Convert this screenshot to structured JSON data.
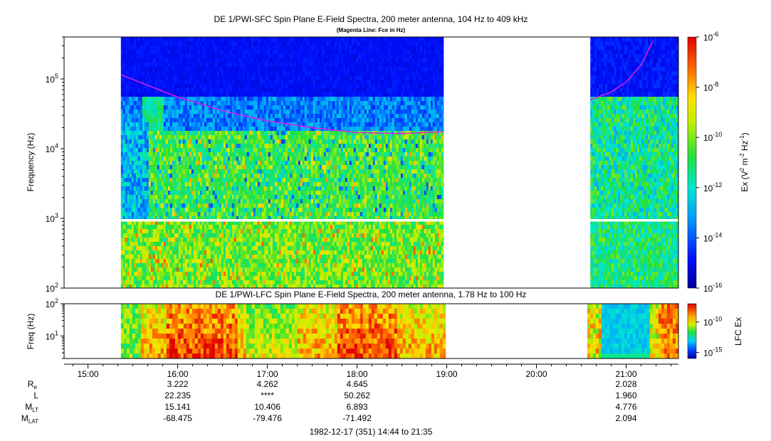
{
  "chart_data": [
    {
      "type": "heatmap",
      "title": "DE 1/PWI-SFC  Spin Plane E-Field Spectra, 200 meter antenna, 104 Hz to 409 kHz",
      "subtitle": "(Magenta Line: Fce in Hz)",
      "ylabel": "Frequency (Hz)",
      "yscale": "log",
      "ylim": [
        100,
        400000
      ],
      "yticks": [
        {
          "base": "10",
          "exp": "2"
        },
        {
          "base": "10",
          "exp": "3"
        },
        {
          "base": "10",
          "exp": "4"
        },
        {
          "base": "10",
          "exp": "5"
        }
      ],
      "colorbar": {
        "label": "Ex (V",
        "label_sup1": "2",
        "label_mid": " m",
        "label_sup2": "-2",
        "label_mid2": " Hz",
        "label_sup3": "-1",
        "label_end": ")",
        "ticks": [
          {
            "base": "10",
            "exp": "-6"
          },
          {
            "base": "10",
            "exp": "-8"
          },
          {
            "base": "10",
            "exp": "-10"
          },
          {
            "base": "10",
            "exp": "-12"
          },
          {
            "base": "10",
            "exp": "-14"
          },
          {
            "base": "10",
            "exp": "-16"
          }
        ],
        "range_log10": [
          -16,
          -6
        ]
      },
      "data_intervals": [
        {
          "start": "15:22",
          "end": "18:58"
        },
        {
          "start": "20:36",
          "end": "21:35"
        }
      ],
      "fce_line": {
        "color": "#e020e0",
        "segment1": {
          "x": [
            "15:22",
            "16:00",
            "16:30",
            "17:00",
            "17:30",
            "18:00",
            "18:30",
            "18:58"
          ],
          "y": [
            115000,
            55000,
            35000,
            25000,
            20000,
            17000,
            16500,
            17500
          ]
        },
        "segment2": {
          "x": [
            "20:36",
            "20:50",
            "21:00",
            "21:10",
            "21:18"
          ],
          "y": [
            50000,
            65000,
            90000,
            160000,
            350000
          ]
        }
      }
    },
    {
      "type": "heatmap",
      "title": "DE 1/PWI-LFC  Spin Plane E-Field Spectra, 200 meter antenna, 1.78 Hz to 100 Hz",
      "ylabel": "Freq (Hz)",
      "yscale": "log",
      "ylim": [
        2,
        100
      ],
      "yticks": [
        {
          "base": "10",
          "exp": "1"
        },
        {
          "base": "10",
          "exp": "2"
        }
      ],
      "colorbar": {
        "label": "LFC Ex",
        "ticks": [
          {
            "base": "10",
            "exp": "-10"
          },
          {
            "base": "10",
            "exp": "-15"
          }
        ],
        "range_log10": [
          -16,
          -7
        ]
      },
      "data_intervals": [
        {
          "start": "15:22",
          "end": "18:58"
        },
        {
          "start": "20:34",
          "end": "21:35"
        }
      ]
    }
  ],
  "time_axis": {
    "xlim": [
      "14:44",
      "21:35"
    ],
    "ticks": [
      "15:00",
      "16:00",
      "17:00",
      "18:00",
      "19:00",
      "20:00",
      "21:00"
    ],
    "caption": "1982-12-17 (351) 14:44 to 21:35"
  },
  "ephemeris": {
    "rows": [
      {
        "label": "R",
        "sub": "e",
        "values": [
          "3.222",
          "4.262",
          "4.645",
          "",
          "",
          "2.028"
        ]
      },
      {
        "label": "L",
        "sub": "",
        "values": [
          "22.235",
          "****",
          "50.262",
          "",
          "",
          "1.960"
        ]
      },
      {
        "label": "M",
        "sub": "LT",
        "values": [
          "15.141",
          "10.406",
          "6.893",
          "",
          "",
          "4.776"
        ]
      },
      {
        "label": "M",
        "sub": "LAT",
        "values": [
          "-68.475",
          "-79.476",
          "-71.492",
          "",
          "",
          "2.094"
        ]
      }
    ],
    "columns": [
      "16:00",
      "17:00",
      "18:00",
      "19:00",
      "20:00",
      "21:00"
    ]
  }
}
